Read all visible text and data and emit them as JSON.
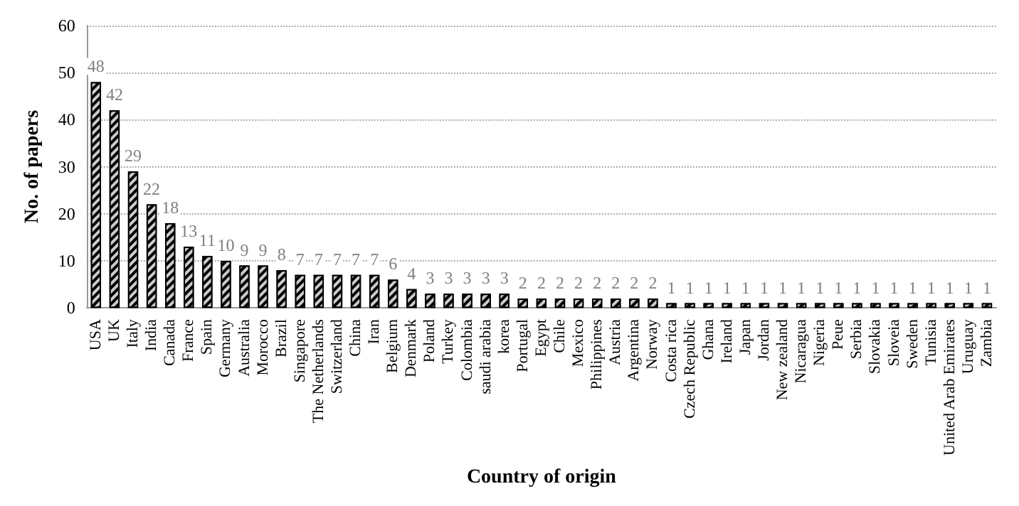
{
  "chart_data": {
    "type": "bar",
    "xlabel": "Country of origin",
    "ylabel": "No. of papers",
    "categories": [
      "USA",
      "UK",
      "Italy",
      "India",
      "Canada",
      "France",
      "Spain",
      "Germany",
      "Australia",
      "Morocco",
      "Brazil",
      "Singapore",
      "The Netherlands",
      "Switzerland",
      "China",
      "Iran",
      "Belgium",
      "Denmark",
      "Poland",
      "Turkey",
      "Colombia",
      "saudi arabia",
      "korea",
      "Portugal",
      "Egypt",
      "Chile",
      "Mexico",
      "Philippines",
      "Austria",
      "Argentina",
      "Norway",
      "Costa rica",
      "Czech Republic",
      "Ghana",
      "Ireland",
      "Japan",
      "Jordan",
      "New zealand",
      "Nicaragua",
      "Nigeria",
      "Peue",
      "Serbia",
      "Slovakia",
      "Sloveia",
      "Sweden",
      "Tunisia",
      "United Arab Emirates",
      "Uruguay",
      "Zambia"
    ],
    "values": [
      48,
      42,
      29,
      22,
      18,
      13,
      11,
      10,
      9,
      9,
      8,
      7,
      7,
      7,
      7,
      7,
      6,
      4,
      3,
      3,
      3,
      3,
      3,
      2,
      2,
      2,
      2,
      2,
      2,
      2,
      2,
      1,
      1,
      1,
      1,
      1,
      1,
      1,
      1,
      1,
      1,
      1,
      1,
      1,
      1,
      1,
      1,
      1,
      1
    ],
    "color": "#000000",
    "ylim": [
      0,
      60
    ],
    "yticks": [
      0,
      10,
      20,
      30,
      40,
      50,
      60
    ],
    "grid": "y",
    "data_labels": true
  }
}
